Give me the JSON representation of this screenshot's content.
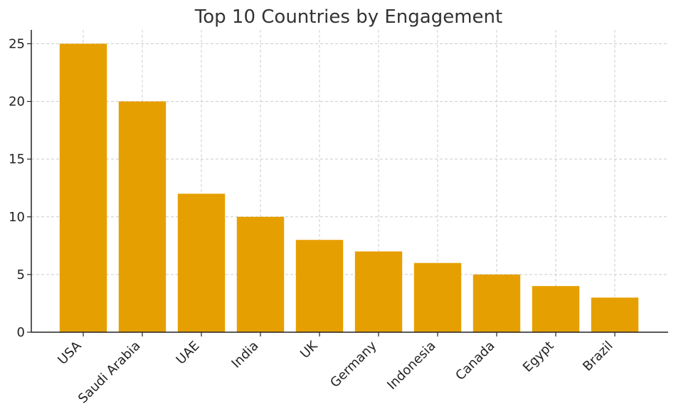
{
  "chart_data": {
    "type": "bar",
    "title": "Top 10 Countries by Engagement",
    "xlabel": "",
    "ylabel": "",
    "categories": [
      "USA",
      "Saudi Arabia",
      "UAE",
      "India",
      "UK",
      "Germany",
      "Indonesia",
      "Canada",
      "Egypt",
      "Brazil"
    ],
    "values": [
      25,
      20,
      12,
      10,
      8,
      7,
      6,
      5,
      4,
      3
    ],
    "ylim": [
      0,
      26.2
    ],
    "yticks": [
      0,
      5,
      10,
      15,
      20,
      25
    ],
    "grid": true,
    "bar_color": "#E69F00"
  }
}
